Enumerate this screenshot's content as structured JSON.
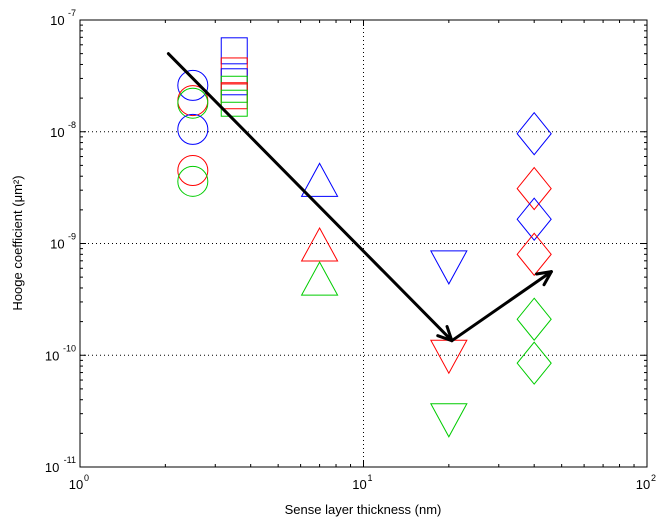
{
  "chart_data": {
    "type": "scatter",
    "title": "",
    "xlabel": "Sense layer thickness (nm)",
    "ylabel": "Hooge coefficient (μm²)",
    "xscale": "log",
    "yscale": "log",
    "xlim": [
      1,
      100
    ],
    "ylim": [
      1e-11,
      1e-07
    ],
    "grid": "dotted, major decades",
    "legend": "none",
    "x_ticks": [
      {
        "value": 1,
        "base": "10",
        "exp": "0"
      },
      {
        "value": 10,
        "base": "10",
        "exp": "1"
      },
      {
        "value": 100,
        "base": "10",
        "exp": "2"
      }
    ],
    "y_ticks": [
      {
        "value": 1e-11,
        "base": "10",
        "exp": "-11"
      },
      {
        "value": 1e-10,
        "base": "10",
        "exp": "-10"
      },
      {
        "value": 1e-09,
        "base": "10",
        "exp": "-9"
      },
      {
        "value": 1e-08,
        "base": "10",
        "exp": "-8"
      },
      {
        "value": 1e-07,
        "base": "10",
        "exp": "-7"
      }
    ],
    "colors": {
      "blue": "#0000ff",
      "red": "#ff0000",
      "green": "#00cc00",
      "arrow": "#000000"
    },
    "points": [
      {
        "x": 2.5,
        "y": 2.6e-08,
        "marker": "circle",
        "color": "blue"
      },
      {
        "x": 2.5,
        "y": 1.9e-08,
        "marker": "circle",
        "color": "red"
      },
      {
        "x": 2.5,
        "y": 1.8e-08,
        "marker": "circle",
        "color": "green"
      },
      {
        "x": 2.5,
        "y": 1.05e-08,
        "marker": "circle",
        "color": "blue"
      },
      {
        "x": 2.5,
        "y": 4.5e-09,
        "marker": "circle",
        "color": "red"
      },
      {
        "x": 2.5,
        "y": 3.6e-09,
        "marker": "circle",
        "color": "green"
      },
      {
        "x": 3.5,
        "y": 5.3e-08,
        "marker": "square",
        "color": "blue"
      },
      {
        "x": 3.5,
        "y": 3.5e-08,
        "marker": "square",
        "color": "red"
      },
      {
        "x": 3.5,
        "y": 2.8e-08,
        "marker": "square",
        "color": "blue"
      },
      {
        "x": 3.5,
        "y": 2.4e-08,
        "marker": "square",
        "color": "green"
      },
      {
        "x": 3.5,
        "y": 2.1e-08,
        "marker": "square",
        "color": "red"
      },
      {
        "x": 3.5,
        "y": 1.8e-08,
        "marker": "square",
        "color": "green"
      },
      {
        "x": 7,
        "y": 3.6e-09,
        "marker": "triangle-up",
        "color": "blue"
      },
      {
        "x": 7,
        "y": 9.5e-10,
        "marker": "triangle-up",
        "color": "red"
      },
      {
        "x": 7,
        "y": 4.7e-10,
        "marker": "triangle-up",
        "color": "green"
      },
      {
        "x": 20,
        "y": 6.3e-10,
        "marker": "triangle-down",
        "color": "blue"
      },
      {
        "x": 20,
        "y": 1e-10,
        "marker": "triangle-down",
        "color": "red"
      },
      {
        "x": 20,
        "y": 2.7e-11,
        "marker": "triangle-down",
        "color": "green"
      },
      {
        "x": 40,
        "y": 9.6e-09,
        "marker": "diamond",
        "color": "blue"
      },
      {
        "x": 40,
        "y": 3.1e-09,
        "marker": "diamond",
        "color": "red"
      },
      {
        "x": 40,
        "y": 1.65e-09,
        "marker": "diamond",
        "color": "blue"
      },
      {
        "x": 40,
        "y": 8e-10,
        "marker": "diamond",
        "color": "red"
      },
      {
        "x": 40,
        "y": 2.1e-10,
        "marker": "diamond",
        "color": "green"
      },
      {
        "x": 40,
        "y": 8.5e-11,
        "marker": "diamond",
        "color": "green"
      }
    ],
    "arrows": [
      {
        "from": {
          "x": 2.05,
          "y": 5e-08
        },
        "to": {
          "x": 20.5,
          "y": 1.35e-10
        }
      },
      {
        "from": {
          "x": 20.5,
          "y": 1.35e-10
        },
        "to": {
          "x": 46,
          "y": 5.6e-10
        }
      }
    ]
  }
}
